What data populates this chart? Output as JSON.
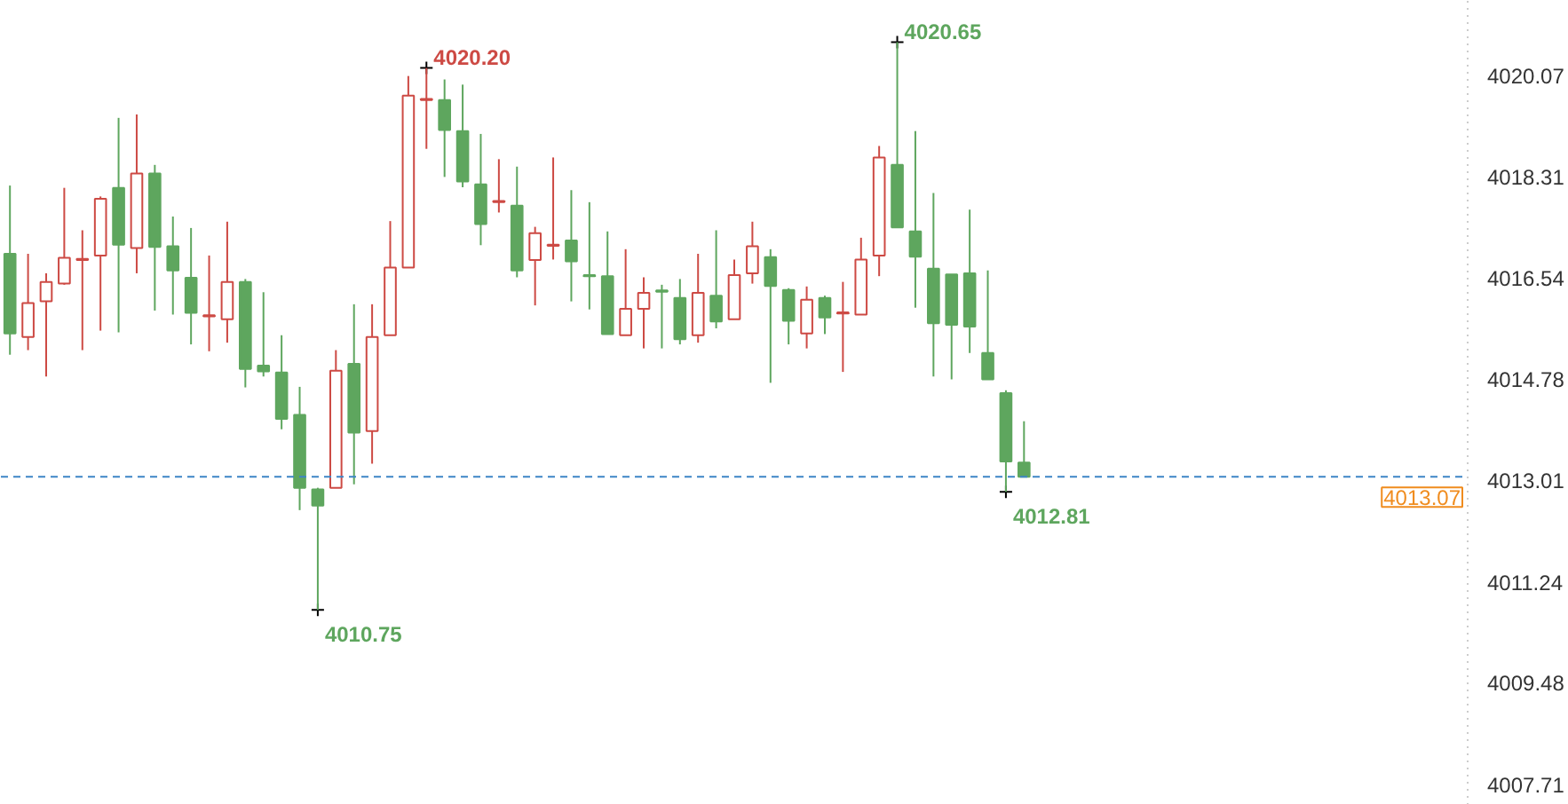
{
  "chart_data": {
    "type": "candlestick",
    "categories": [
      null,
      null,
      null,
      null,
      null,
      null,
      null,
      null,
      null,
      null,
      null,
      null,
      null,
      null,
      null,
      null,
      null,
      null,
      null,
      null,
      null,
      null,
      null,
      null,
      null,
      null,
      null,
      null,
      null,
      null,
      null,
      null,
      null,
      null,
      null,
      null,
      null,
      null,
      null,
      null,
      null,
      null,
      null,
      null,
      null,
      null,
      null,
      null,
      null,
      null,
      null,
      null,
      null,
      null,
      null,
      null,
      null,
      null,
      null,
      null,
      null,
      null,
      null,
      null,
      null,
      null,
      null,
      null,
      null,
      null,
      null,
      null,
      null,
      null,
      null,
      null,
      null,
      null,
      null,
      null,
      null
    ],
    "ohlc": [
      [
        4016.96,
        4018.15,
        4015.2,
        4015.57
      ],
      [
        4015.51,
        4016.96,
        4015.28,
        4016.1
      ],
      [
        4016.13,
        4016.62,
        4014.82,
        4016.47
      ],
      [
        4016.44,
        4018.11,
        4016.42,
        4016.89
      ],
      [
        4016.85,
        4017.37,
        4015.28,
        4016.87
      ],
      [
        4016.93,
        4017.96,
        4015.62,
        4017.92
      ],
      [
        4018.11,
        4019.33,
        4015.59,
        4017.12
      ],
      [
        4017.06,
        4019.39,
        4016.62,
        4018.36
      ],
      [
        4018.36,
        4018.51,
        4015.97,
        4017.08
      ],
      [
        4017.09,
        4017.61,
        4015.9,
        4016.67
      ],
      [
        4016.54,
        4017.41,
        4015.38,
        4015.93
      ],
      [
        4015.87,
        4016.93,
        4015.26,
        4015.89
      ],
      [
        4015.82,
        4017.52,
        4015.41,
        4016.47
      ],
      [
        4016.47,
        4016.52,
        4014.63,
        4014.95
      ],
      [
        4015.01,
        4016.29,
        4014.82,
        4014.91
      ],
      [
        4014.89,
        4015.54,
        4013.9,
        4014.08
      ],
      [
        4014.15,
        4014.64,
        4012.49,
        4012.88
      ],
      [
        4012.85,
        4012.88,
        4010.75,
        4012.57
      ],
      [
        4012.88,
        4015.28,
        4012.88,
        4014.92
      ],
      [
        4015.04,
        4016.08,
        4012.94,
        4013.84
      ],
      [
        4013.87,
        4016.08,
        4013.3,
        4015.51
      ],
      [
        4015.54,
        4017.53,
        4015.54,
        4016.72
      ],
      [
        4016.72,
        4020.06,
        4016.72,
        4019.72
      ],
      [
        4019.64,
        4020.2,
        4018.79,
        4019.66
      ],
      [
        4019.64,
        4020.0,
        4018.3,
        4019.12
      ],
      [
        4019.1,
        4019.91,
        4018.12,
        4018.22
      ],
      [
        4018.17,
        4019.05,
        4017.11,
        4017.48
      ],
      [
        4017.86,
        4018.61,
        4017.68,
        4017.88
      ],
      [
        4017.8,
        4018.48,
        4016.55,
        4016.67
      ],
      [
        4016.85,
        4017.43,
        4016.06,
        4017.32
      ],
      [
        4017.1,
        4018.64,
        4016.86,
        4017.12
      ],
      [
        4017.19,
        4018.07,
        4016.13,
        4016.83
      ],
      [
        4016.59,
        4017.86,
        4015.99,
        4016.57
      ],
      [
        4016.57,
        4017.35,
        4015.56,
        4015.56
      ],
      [
        4015.54,
        4017.04,
        4015.54,
        4016.0
      ],
      [
        4016.0,
        4016.55,
        4015.31,
        4016.28
      ],
      [
        4016.32,
        4016.42,
        4015.31,
        4016.3
      ],
      [
        4016.19,
        4016.52,
        4015.38,
        4015.47
      ],
      [
        4015.54,
        4016.96,
        4015.41,
        4016.28
      ],
      [
        4016.23,
        4017.37,
        4015.66,
        4015.78
      ],
      [
        4015.82,
        4016.86,
        4015.82,
        4016.59
      ],
      [
        4016.62,
        4017.52,
        4016.44,
        4017.09
      ],
      [
        4016.9,
        4017.04,
        4014.71,
        4016.4
      ],
      [
        4016.33,
        4016.36,
        4015.38,
        4015.79
      ],
      [
        4015.57,
        4016.39,
        4015.31,
        4016.16
      ],
      [
        4016.19,
        4016.23,
        4015.56,
        4015.85
      ],
      [
        4015.92,
        4016.47,
        4014.9,
        4015.94
      ],
      [
        4015.9,
        4017.24,
        4015.9,
        4016.86
      ],
      [
        4016.93,
        4018.84,
        4016.57,
        4018.64
      ],
      [
        4018.51,
        4020.65,
        4017.42,
        4017.42
      ],
      [
        4017.35,
        4019.1,
        4016.02,
        4016.91
      ],
      [
        4016.7,
        4018.02,
        4014.82,
        4015.75
      ],
      [
        4016.6,
        4016.6,
        4014.77,
        4015.72
      ],
      [
        4016.62,
        4017.73,
        4015.23,
        4015.69
      ],
      [
        4015.23,
        4016.67,
        4014.77,
        4014.77
      ],
      [
        4014.53,
        4014.58,
        4012.81,
        4013.34
      ],
      [
        4013.32,
        4014.04,
        4013.07,
        4013.07
      ],
      null,
      null,
      null,
      null,
      null,
      null,
      null,
      null,
      null,
      null,
      null,
      null,
      null,
      null,
      null,
      null,
      null,
      null,
      null,
      null,
      null,
      null,
      null,
      null
    ],
    "colors": [
      "#5ea65e",
      "#cd4a44",
      "#cd4a44",
      "#cd4a44",
      "#cd4a44",
      "#cd4a44",
      "#5ea65e",
      "#cd4a44",
      "#5ea65e",
      "#5ea65e",
      "#5ea65e",
      "#cd4a44",
      "#cd4a44",
      "#5ea65e",
      "#5ea65e",
      "#5ea65e",
      "#5ea65e",
      "#5ea65e",
      "#cd4a44",
      "#5ea65e",
      "#cd4a44",
      "#cd4a44",
      "#cd4a44",
      "#cd4a44",
      "#5ea65e",
      "#5ea65e",
      "#5ea65e",
      "#cd4a44",
      "#5ea65e",
      "#cd4a44",
      "#cd4a44",
      "#5ea65e",
      "#5ea65e",
      "#5ea65e",
      "#cd4a44",
      "#cd4a44",
      "#5ea65e",
      "#5ea65e",
      "#cd4a44",
      "#5ea65e",
      "#cd4a44",
      "#cd4a44",
      "#5ea65e",
      "#5ea65e",
      "#cd4a44",
      "#5ea65e",
      "#cd4a44",
      "#cd4a44",
      "#cd4a44",
      "#5ea65e",
      "#5ea65e",
      "#5ea65e",
      "#5ea65e",
      "#5ea65e",
      "#5ea65e",
      "#5ea65e",
      "#5ea65e",
      null,
      null,
      null,
      null,
      null,
      null,
      null,
      null,
      null,
      null,
      null,
      null,
      null,
      null,
      null,
      null,
      null,
      null,
      null,
      null,
      null,
      null,
      null,
      null
    ],
    "ylim": [
      4007.35,
      4021.37
    ],
    "yticks": [
      4020.07,
      4018.31,
      4016.54,
      4014.78,
      4013.01,
      4011.24,
      4009.48,
      4007.71
    ],
    "ref_lines": [
      {
        "axis": "y",
        "value": 4013.07,
        "label": "4013.07",
        "color": "#3d85c6",
        "line_style": "dashed"
      }
    ],
    "annotations": [
      "4020.20",
      "4020.65",
      "4010.75",
      "4012.81"
    ],
    "grid": false
  }
}
